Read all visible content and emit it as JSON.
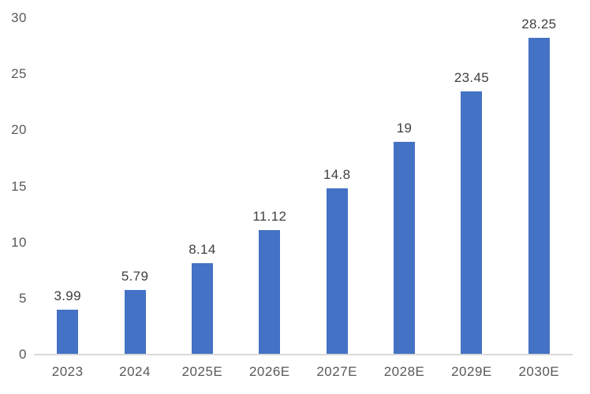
{
  "chart_data": {
    "type": "bar",
    "categories": [
      "2023",
      "2024",
      "2025E",
      "2026E",
      "2027E",
      "2028E",
      "2029E",
      "2030E"
    ],
    "values": [
      3.99,
      5.79,
      8.14,
      11.12,
      14.8,
      19,
      23.45,
      28.25
    ],
    "value_labels": [
      "3.99",
      "5.79",
      "8.14",
      "11.12",
      "14.8",
      "19",
      "23.45",
      "28.25"
    ],
    "title": "",
    "xlabel": "",
    "ylabel": "",
    "ylim": [
      0,
      30
    ],
    "y_ticks": [
      0,
      5,
      10,
      15,
      20,
      25,
      30
    ],
    "grid": false,
    "legend_position": "none",
    "colors": {
      "bar": "#4472C4",
      "axis_tick_text": "#595959",
      "data_label_text": "#404040",
      "axis_line": "#D9D9D9",
      "background": "#FFFFFF"
    }
  }
}
